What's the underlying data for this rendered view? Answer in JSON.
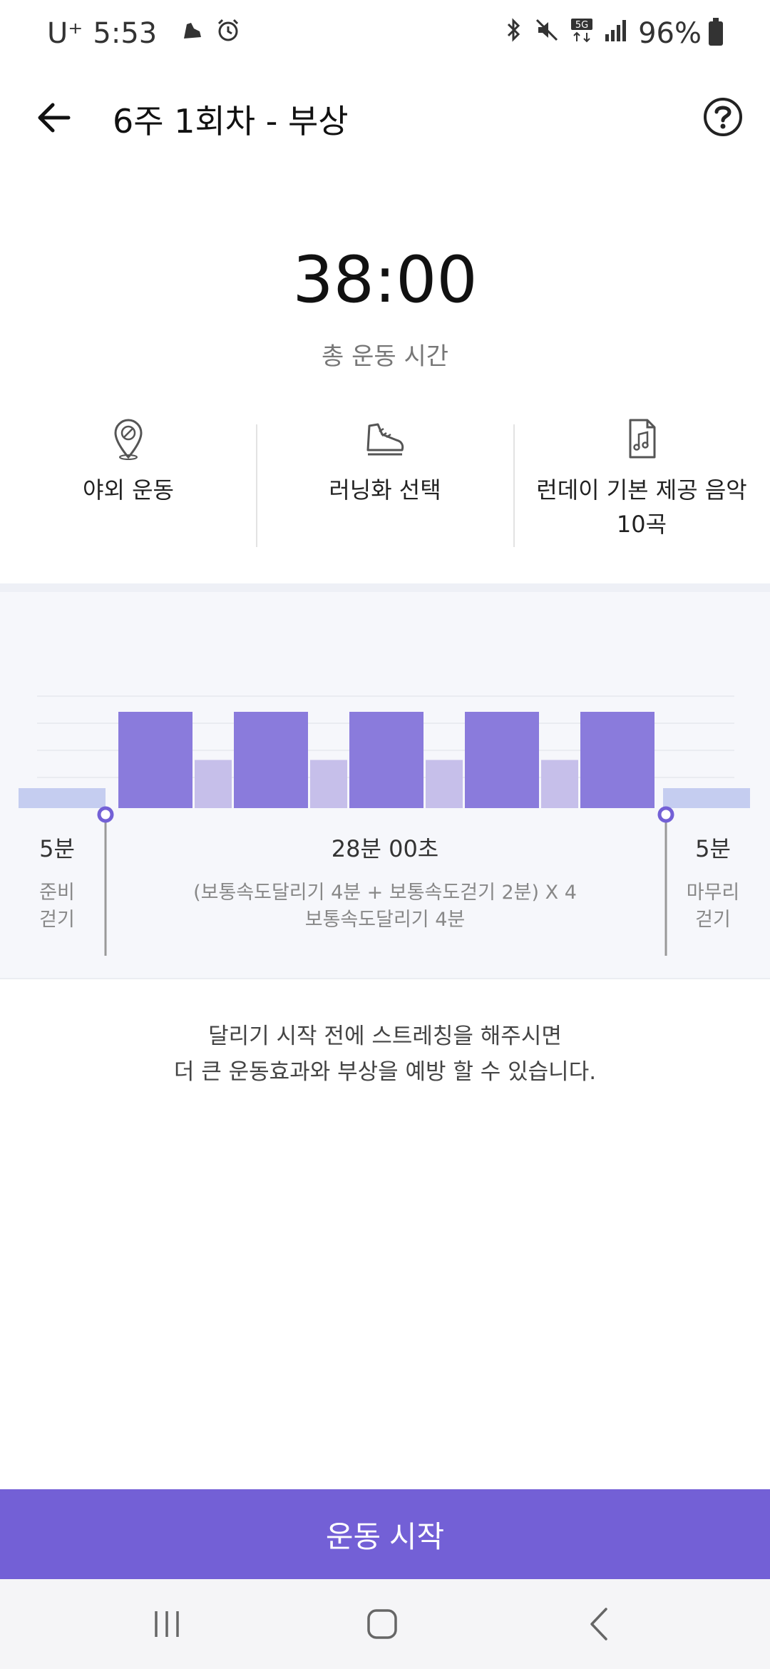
{
  "status_bar": {
    "carrier": "U⁺",
    "time": "5:53",
    "battery": "96%",
    "icons": [
      "shoe-icon",
      "alarm-icon",
      "bluetooth-icon",
      "mute-icon",
      "5g-icon",
      "signal-icon",
      "battery-icon"
    ]
  },
  "header": {
    "title": "6주 1회차 - 부상"
  },
  "summary": {
    "total_time": "38:00",
    "total_label": "총 운동 시간"
  },
  "options": [
    {
      "icon": "location-pin-icon",
      "label": "야외 운동"
    },
    {
      "icon": "running-shoe-icon",
      "label": "러닝화 선택"
    },
    {
      "icon": "music-file-icon",
      "label": "런데이 기본 제공 음악",
      "label2": "10곡"
    }
  ],
  "plan": {
    "warmup": {
      "duration": "5분",
      "label1": "준비",
      "label2": "걷기"
    },
    "main": {
      "duration": "28분 00초",
      "line1": "(보통속도달리기 4분 + 보통속도걷기 2분) X 4",
      "line2": "보통속도달리기 4분"
    },
    "cooldown": {
      "duration": "5분",
      "label1": "마무리",
      "label2": "걷기"
    }
  },
  "chart_data": {
    "type": "bar",
    "categories": [
      "warmup",
      "run",
      "walk",
      "run",
      "walk",
      "run",
      "walk",
      "run",
      "walk",
      "run",
      "cooldown"
    ],
    "values": [
      5,
      4,
      2,
      4,
      2,
      4,
      2,
      4,
      2,
      4,
      5
    ],
    "kinds": [
      "walk-slow",
      "run",
      "walk",
      "run",
      "walk",
      "run",
      "walk",
      "run",
      "walk",
      "run",
      "walk-slow"
    ]
  },
  "tip": {
    "line1": "달리기 시작 전에 스트레칭을 해주시면",
    "line2": "더 큰 운동효과와 부상을 예방 할 수 있습니다."
  },
  "footer": {
    "start_label": "운동 시작"
  },
  "colors": {
    "accent": "#7360d6",
    "run_bar": "#8a7bdc",
    "walk_bar": "#c6bfea",
    "slow_bar": "#c5cdf0"
  }
}
